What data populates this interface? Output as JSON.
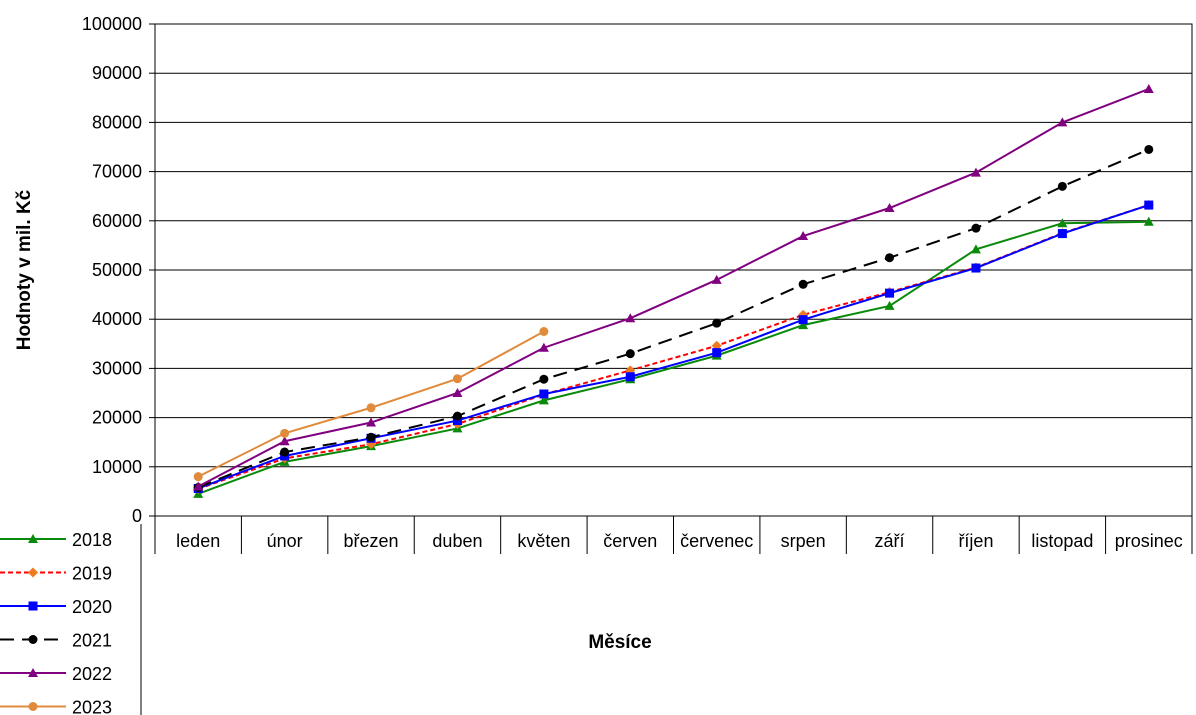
{
  "chart_data": {
    "type": "line",
    "title": "",
    "xlabel": "Měsíce",
    "ylabel": "Hodnoty v mil. Kč",
    "ylim": [
      0,
      100000
    ],
    "yticks": [
      0,
      10000,
      20000,
      30000,
      40000,
      50000,
      60000,
      70000,
      80000,
      90000,
      100000
    ],
    "grid": "horizontal",
    "legend_position": "bottom-left",
    "categories": [
      "leden",
      "únor",
      "březen",
      "duben",
      "květen",
      "červen",
      "červenec",
      "srpen",
      "září",
      "říjen",
      "listopad",
      "prosinec"
    ],
    "series": [
      {
        "name": "2018",
        "color": "#0a8a0a",
        "marker": "triangle",
        "dash": "solid",
        "values": [
          4500,
          11000,
          14200,
          17800,
          23500,
          27800,
          32600,
          38800,
          42700,
          54200,
          59500,
          59800
        ]
      },
      {
        "name": "2019",
        "color": "#ff0000",
        "marker": "diamond",
        "dash": "dotted",
        "marker_color": "#f07a20",
        "values": [
          5500,
          11700,
          14600,
          18700,
          24700,
          29600,
          34600,
          40900,
          45500,
          50500,
          57500,
          63200
        ]
      },
      {
        "name": "2020",
        "color": "#0000ff",
        "marker": "square",
        "dash": "solid",
        "values": [
          5600,
          12200,
          15800,
          19400,
          24800,
          28300,
          33200,
          39900,
          45300,
          50400,
          57400,
          63200
        ]
      },
      {
        "name": "2021",
        "color": "#000000",
        "marker": "circle",
        "dash": "dashed",
        "values": [
          5800,
          13000,
          16000,
          20300,
          27800,
          33000,
          39200,
          47100,
          52500,
          58500,
          67000,
          74500
        ]
      },
      {
        "name": "2022",
        "color": "#800080",
        "marker": "triangle",
        "dash": "solid",
        "values": [
          6000,
          15200,
          19000,
          25000,
          34200,
          40200,
          48000,
          56900,
          62600,
          69800,
          80000,
          86800
        ]
      },
      {
        "name": "2023",
        "color": "#e08a3c",
        "marker": "circle",
        "dash": "solid",
        "values": [
          8000,
          16800,
          22000,
          27900,
          37500,
          null,
          null,
          null,
          null,
          null,
          null,
          null
        ]
      }
    ]
  }
}
